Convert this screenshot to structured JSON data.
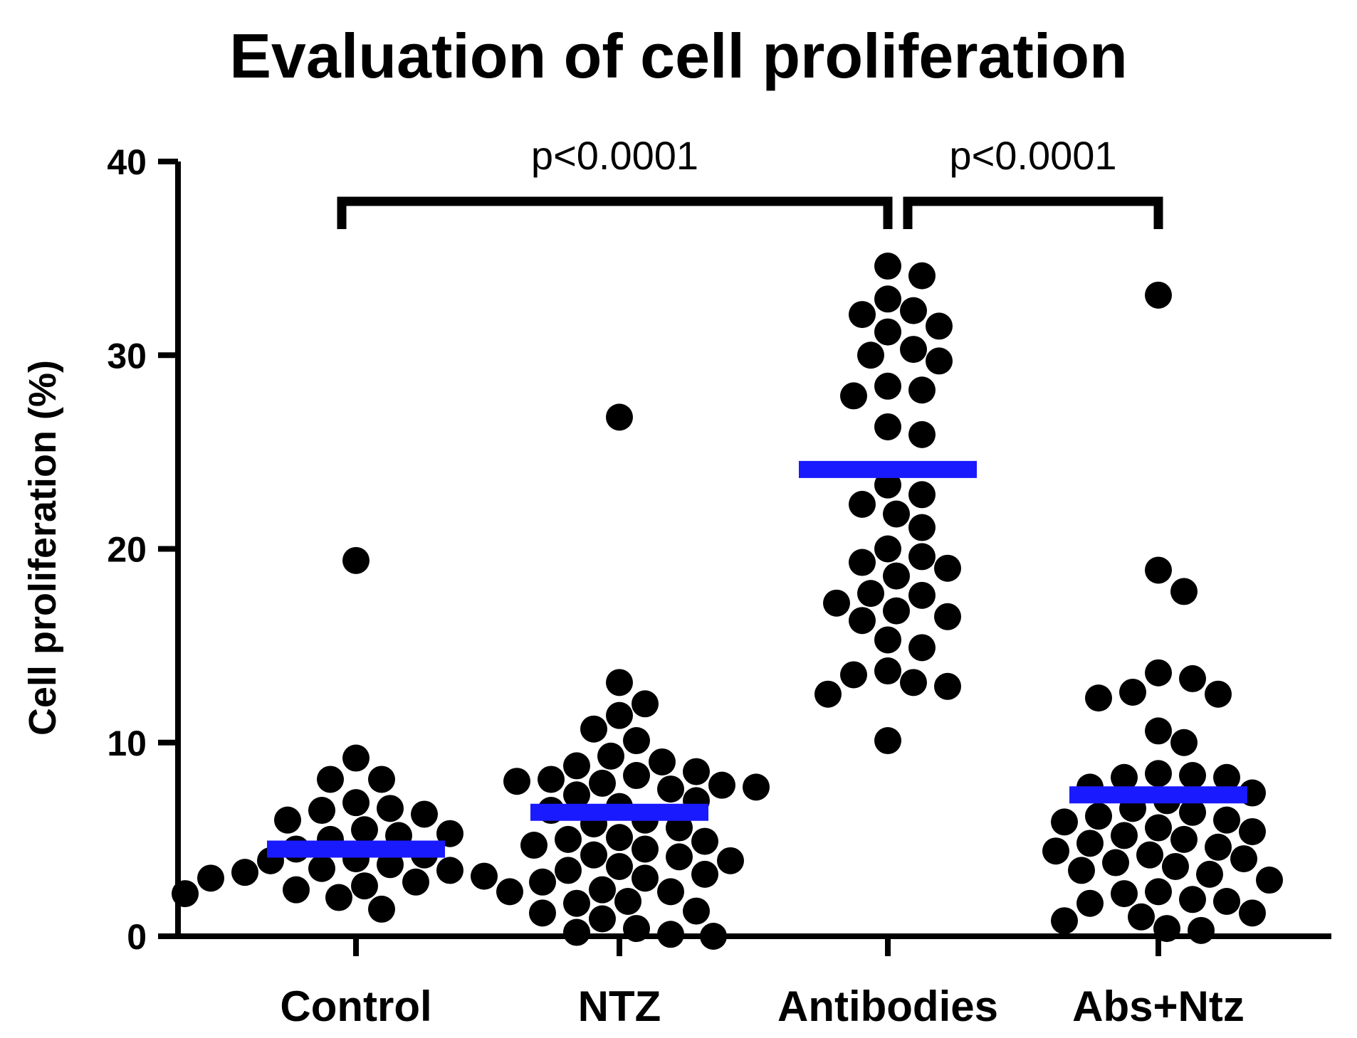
{
  "chart_data": {
    "type": "scatter",
    "title": "Evaluation of cell proliferation",
    "xlabel": "",
    "ylabel": "Cell proliferation (%)",
    "ylim": [
      0,
      40
    ],
    "yticks": [
      "0",
      "10",
      "20",
      "30",
      "40"
    ],
    "categories": [
      "Control",
      "NTZ",
      "Antibodies",
      "Abs+Ntz"
    ],
    "colors": {
      "points": "#000000",
      "mean": "#1a1aff",
      "axes": "#000000"
    },
    "means": [
      4.5,
      6.4,
      24.1,
      7.3
    ],
    "groups": [
      {
        "name": "Control",
        "values": [
          19.4,
          9.2,
          8.1,
          8.1,
          6.9,
          6.6,
          6.5,
          6.3,
          6.0,
          5.5,
          5.3,
          5.2,
          5.0,
          4.5,
          4.2,
          4.0,
          3.9,
          3.7,
          3.5,
          3.4,
          3.3,
          3.1,
          3.0,
          2.8,
          2.6,
          2.4,
          2.3,
          2.2,
          2.0,
          1.4
        ]
      },
      {
        "name": "NTZ",
        "values": [
          26.8,
          13.1,
          12.0,
          11.4,
          10.7,
          10.1,
          9.3,
          9.0,
          8.8,
          8.5,
          8.3,
          8.1,
          8.0,
          7.9,
          7.8,
          7.7,
          7.6,
          7.3,
          7.0,
          6.7,
          6.5,
          6.0,
          5.8,
          5.6,
          5.1,
          5.0,
          4.9,
          4.7,
          4.5,
          4.2,
          4.1,
          3.9,
          3.6,
          3.4,
          3.2,
          3.0,
          2.8,
          2.4,
          2.3,
          1.8,
          1.7,
          1.3,
          1.2,
          0.9,
          0.4,
          0.2,
          0.1,
          0.0
        ]
      },
      {
        "name": "Antibodies",
        "values": [
          34.6,
          34.1,
          32.9,
          32.3,
          32.1,
          31.5,
          31.2,
          30.3,
          30.0,
          29.7,
          28.4,
          28.2,
          27.9,
          26.3,
          25.9,
          23.3,
          22.8,
          22.3,
          21.8,
          21.1,
          20.0,
          19.6,
          19.3,
          19.0,
          18.6,
          17.7,
          17.6,
          17.2,
          16.8,
          16.5,
          16.3,
          15.3,
          14.9,
          13.7,
          13.5,
          13.1,
          12.9,
          12.5,
          10.1
        ]
      },
      {
        "name": "Abs+Ntz",
        "values": [
          33.1,
          18.9,
          17.8,
          13.6,
          13.3,
          12.6,
          12.5,
          12.3,
          10.6,
          10.0,
          8.4,
          8.3,
          8.2,
          8.2,
          7.7,
          7.4,
          7.0,
          6.6,
          6.4,
          6.2,
          6.0,
          5.9,
          5.6,
          5.4,
          5.2,
          5.0,
          4.8,
          4.6,
          4.4,
          4.2,
          4.0,
          3.8,
          3.6,
          3.4,
          3.2,
          2.9,
          2.3,
          2.2,
          1.9,
          1.8,
          1.7,
          1.2,
          1.0,
          0.8,
          0.4,
          0.3
        ]
      }
    ],
    "significance": [
      {
        "from": "Control",
        "to": "Antibodies",
        "label": "p<0.0001"
      },
      {
        "from": "Antibodies",
        "to": "Abs+Ntz",
        "label": "p<0.0001"
      }
    ]
  }
}
